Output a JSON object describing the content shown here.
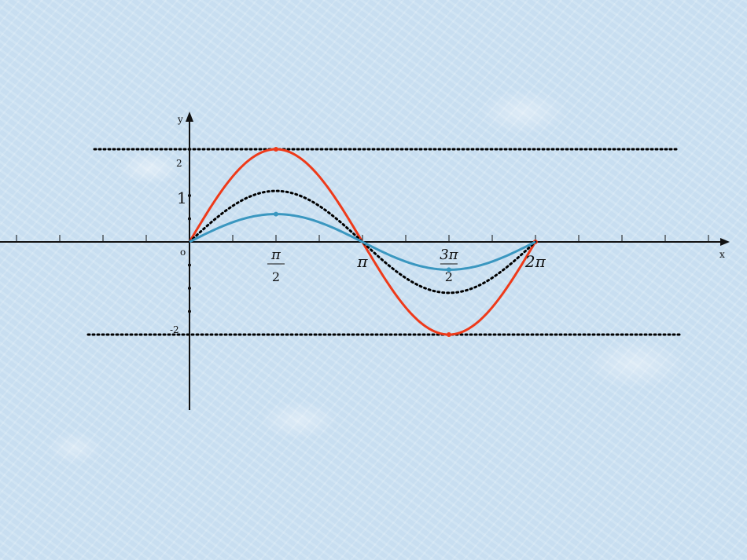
{
  "chart_data": {
    "type": "line",
    "axis_labels": {
      "x": "x",
      "y": "y",
      "origin": "o"
    },
    "y_tick_labels": [
      {
        "value": 2,
        "text": "2"
      },
      {
        "value": 1,
        "text": "1"
      },
      {
        "value": -2,
        "text": "-2"
      }
    ],
    "x_tick_labels": [
      {
        "value": 1.5708,
        "num": "π",
        "den": "2"
      },
      {
        "value": 3.1416,
        "text": "π"
      },
      {
        "value": 4.7124,
        "num": "3π",
        "den": "2"
      },
      {
        "value": 6.2832,
        "text": "2π"
      }
    ],
    "xlim": [
      -3.3,
      9.2
    ],
    "ylim": [
      -3.0,
      2.5
    ],
    "reference_lines": [
      {
        "y": 2,
        "style": "dotted",
        "color": "#000000"
      },
      {
        "y": -2,
        "style": "dotted",
        "color": "#000000"
      }
    ],
    "series": [
      {
        "amplitude": 2,
        "x_start": 0,
        "x_end": 6.2832,
        "color": "#ee3a1a",
        "style": "solid",
        "points": [
          [
            1.5708,
            2
          ],
          [
            4.7124,
            -2
          ],
          [
            6.2832,
            0
          ]
        ]
      },
      {
        "amplitude": 1.1,
        "x_start": 0,
        "x_end": 6.2832,
        "color": "#000000",
        "style": "dotted"
      },
      {
        "amplitude": 0.6,
        "x_start": 0,
        "x_end": 6.2832,
        "color": "#3a97c0",
        "style": "solid",
        "points": [
          [
            1.5708,
            0.6
          ],
          [
            4.7124,
            -0.6
          ]
        ]
      }
    ],
    "y_axis_dots": [
      2,
      1,
      0.5,
      -0.5,
      -1,
      -1.5
    ],
    "grid": false
  }
}
